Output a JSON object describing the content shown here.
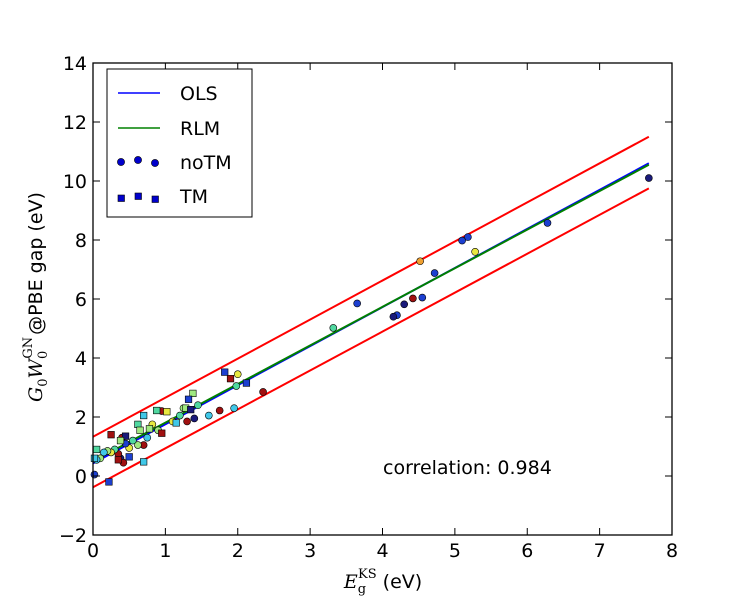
{
  "chart_data": {
    "type": "scatter",
    "xlim": [
      0,
      8
    ],
    "ylim": [
      -2,
      14
    ],
    "xticks": [
      0,
      1,
      2,
      3,
      4,
      5,
      6,
      7,
      8
    ],
    "yticks": [
      -2,
      0,
      2,
      4,
      6,
      8,
      10,
      12,
      14
    ],
    "xlabel": {
      "base": "E",
      "sub": "g",
      "sup": "KS",
      "unit": "(eV)"
    },
    "ylabel": {
      "g": "G",
      "g_sub": "0",
      "w": "W",
      "w_sub": "0",
      "w_sup": "GN",
      "rest": "@PBE gap (eV)"
    },
    "legend": {
      "position": "top-left",
      "entries": [
        {
          "label": "OLS",
          "kind": "line",
          "color": "#0000ff"
        },
        {
          "label": "RLM",
          "kind": "line",
          "color": "#008000"
        },
        {
          "label": "noTM",
          "kind": "circle",
          "color": "#0000cc"
        },
        {
          "label": "TM",
          "kind": "square",
          "color": "#0000cc"
        }
      ]
    },
    "annotation": "correlation: 0.984",
    "lines": [
      {
        "name": "OLS",
        "color": "#0000ff",
        "x": [
          0,
          7.68
        ],
        "y": [
          0.43,
          10.6
        ]
      },
      {
        "name": "RLM",
        "color": "#008000",
        "x": [
          0,
          7.68
        ],
        "y": [
          0.5,
          10.55
        ]
      },
      {
        "name": "upper bound",
        "color": "#ff0000",
        "x": [
          0,
          7.68
        ],
        "y": [
          1.33,
          11.5
        ]
      },
      {
        "name": "lower bound",
        "color": "#ff0000",
        "x": [
          0,
          7.68
        ],
        "y": [
          -0.38,
          9.75
        ]
      }
    ],
    "series": [
      {
        "name": "noTM",
        "marker": "circle",
        "points": [
          {
            "x": 7.68,
            "y": 10.1,
            "c": "#1a1a7a"
          },
          {
            "x": 6.28,
            "y": 8.58,
            "c": "#1c3fd0"
          },
          {
            "x": 5.28,
            "y": 7.6,
            "c": "#e8e840"
          },
          {
            "x": 5.18,
            "y": 8.1,
            "c": "#1c3fd0"
          },
          {
            "x": 5.1,
            "y": 7.98,
            "c": "#1c3fd0"
          },
          {
            "x": 4.52,
            "y": 7.28,
            "c": "#f0a030"
          },
          {
            "x": 4.72,
            "y": 6.88,
            "c": "#1c3fd0"
          },
          {
            "x": 4.55,
            "y": 6.05,
            "c": "#1c3fd0"
          },
          {
            "x": 4.42,
            "y": 6.02,
            "c": "#a01010"
          },
          {
            "x": 4.3,
            "y": 5.82,
            "c": "#1a1a7a"
          },
          {
            "x": 4.2,
            "y": 5.45,
            "c": "#1c3fd0"
          },
          {
            "x": 4.15,
            "y": 5.4,
            "c": "#1a1a7a"
          },
          {
            "x": 3.65,
            "y": 5.85,
            "c": "#1c3fd0"
          },
          {
            "x": 3.32,
            "y": 5.02,
            "c": "#50d8a0"
          },
          {
            "x": 2.35,
            "y": 2.85,
            "c": "#a01010"
          },
          {
            "x": 2.0,
            "y": 3.45,
            "c": "#e8e840"
          },
          {
            "x": 1.98,
            "y": 3.05,
            "c": "#50d8a0"
          },
          {
            "x": 1.95,
            "y": 2.3,
            "c": "#40c8e8"
          },
          {
            "x": 1.75,
            "y": 2.22,
            "c": "#a01010"
          },
          {
            "x": 1.6,
            "y": 2.05,
            "c": "#40c8e8"
          },
          {
            "x": 1.45,
            "y": 2.4,
            "c": "#50d8a0"
          },
          {
            "x": 1.4,
            "y": 1.95,
            "c": "#1a1a7a"
          },
          {
            "x": 1.3,
            "y": 1.85,
            "c": "#a01010"
          },
          {
            "x": 1.25,
            "y": 2.3,
            "c": "#a0e880"
          },
          {
            "x": 1.2,
            "y": 2.05,
            "c": "#50d8a0"
          },
          {
            "x": 1.1,
            "y": 1.85,
            "c": "#e8e840"
          },
          {
            "x": 0.95,
            "y": 2.2,
            "c": "#a01010"
          },
          {
            "x": 0.9,
            "y": 1.55,
            "c": "#a0e880"
          },
          {
            "x": 0.82,
            "y": 1.75,
            "c": "#e8e840"
          },
          {
            "x": 0.75,
            "y": 1.3,
            "c": "#40c8e8"
          },
          {
            "x": 0.7,
            "y": 1.05,
            "c": "#a01010"
          },
          {
            "x": 0.62,
            "y": 1.05,
            "c": "#a0e880"
          },
          {
            "x": 0.55,
            "y": 1.2,
            "c": "#50d8a0"
          },
          {
            "x": 0.5,
            "y": 0.95,
            "c": "#e8e840"
          },
          {
            "x": 0.45,
            "y": 1.1,
            "c": "#1c3fd0"
          },
          {
            "x": 0.4,
            "y": 1.3,
            "c": "#a01010"
          },
          {
            "x": 0.38,
            "y": 0.6,
            "c": "#1a1a7a"
          },
          {
            "x": 0.35,
            "y": 0.75,
            "c": "#a01010"
          },
          {
            "x": 0.3,
            "y": 0.9,
            "c": "#50d8a0"
          },
          {
            "x": 0.25,
            "y": 0.8,
            "c": "#e8e840"
          },
          {
            "x": 0.2,
            "y": 0.85,
            "c": "#a0e880"
          },
          {
            "x": 0.15,
            "y": 0.8,
            "c": "#40c8e8"
          },
          {
            "x": 0.1,
            "y": 0.6,
            "c": "#a0e880"
          },
          {
            "x": 0.05,
            "y": 0.55,
            "c": "#40c8e8"
          },
          {
            "x": 0.02,
            "y": 0.05,
            "c": "#1c3fd0"
          },
          {
            "x": 0.42,
            "y": 0.45,
            "c": "#a01010"
          }
        ]
      },
      {
        "name": "TM",
        "marker": "square",
        "points": [
          {
            "x": 2.12,
            "y": 3.15,
            "c": "#1c3fd0"
          },
          {
            "x": 1.82,
            "y": 3.52,
            "c": "#1c3fd0"
          },
          {
            "x": 1.9,
            "y": 3.3,
            "c": "#a01010"
          },
          {
            "x": 1.38,
            "y": 2.8,
            "c": "#a0e880"
          },
          {
            "x": 1.32,
            "y": 2.6,
            "c": "#1c3fd0"
          },
          {
            "x": 1.28,
            "y": 2.3,
            "c": "#a0e880"
          },
          {
            "x": 1.35,
            "y": 2.25,
            "c": "#1a1a7a"
          },
          {
            "x": 1.15,
            "y": 1.8,
            "c": "#40c8e8"
          },
          {
            "x": 1.02,
            "y": 2.18,
            "c": "#e8e840"
          },
          {
            "x": 0.95,
            "y": 1.45,
            "c": "#a01010"
          },
          {
            "x": 0.88,
            "y": 2.22,
            "c": "#50d8a0"
          },
          {
            "x": 0.78,
            "y": 1.6,
            "c": "#a0e880"
          },
          {
            "x": 0.7,
            "y": 2.05,
            "c": "#40c8e8"
          },
          {
            "x": 0.62,
            "y": 1.75,
            "c": "#50d8a0"
          },
          {
            "x": 0.65,
            "y": 1.55,
            "c": "#a0e880"
          },
          {
            "x": 0.7,
            "y": 0.48,
            "c": "#40c8e8"
          },
          {
            "x": 0.5,
            "y": 0.65,
            "c": "#1c3fd0"
          },
          {
            "x": 0.45,
            "y": 1.35,
            "c": "#1a1a7a"
          },
          {
            "x": 0.38,
            "y": 1.2,
            "c": "#a0e880"
          },
          {
            "x": 0.25,
            "y": 1.4,
            "c": "#a01010"
          },
          {
            "x": 0.22,
            "y": -0.2,
            "c": "#1c3fd0"
          },
          {
            "x": 0.35,
            "y": 0.55,
            "c": "#a01010"
          },
          {
            "x": 0.05,
            "y": 0.9,
            "c": "#50d8a0"
          },
          {
            "x": 0.02,
            "y": 0.6,
            "c": "#40c8e8"
          }
        ]
      }
    ]
  }
}
